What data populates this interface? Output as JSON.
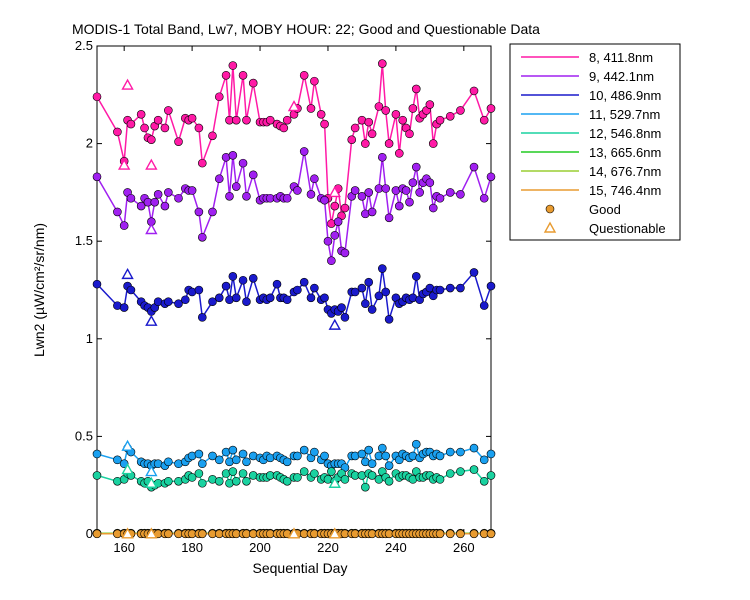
{
  "chart_data": {
    "type": "line",
    "title": "MODIS-1 Total Band, Lw7, MOBY HOUR: 22;  Good and Questionable Data",
    "xlabel": "Sequential Day",
    "ylabel": "Lwn2 (µW/cm²/sr/nm)",
    "xlim": [
      152,
      268
    ],
    "ylim": [
      0,
      2.5
    ],
    "xticks": [
      "160",
      "180",
      "200",
      "220",
      "240",
      "260"
    ],
    "yticks": [
      "0",
      "0.5",
      "1",
      "1.5",
      "2",
      "2.5"
    ],
    "grid": false,
    "legend_position": "right-outside",
    "x": [
      152,
      158,
      160,
      161,
      162,
      165,
      166,
      167,
      168,
      169,
      170,
      172,
      173,
      176,
      178,
      179,
      180,
      182,
      183,
      186,
      188,
      190,
      191,
      192,
      193,
      195,
      196,
      198,
      200,
      201,
      202,
      203,
      205,
      206,
      207,
      208,
      210,
      211,
      213,
      215,
      216,
      218,
      219,
      220,
      221,
      222,
      223,
      224,
      225,
      227,
      228,
      230,
      231,
      232,
      233,
      235,
      236,
      237,
      238,
      240,
      241,
      242,
      243,
      244,
      245,
      246,
      247,
      248,
      249,
      250,
      251,
      252,
      253,
      256,
      259,
      263,
      266,
      268
    ],
    "series": [
      {
        "name": "8, 411.8nm",
        "color": "#ff1aa6",
        "values": [
          2.24,
          2.06,
          1.91,
          2.12,
          2.1,
          2.15,
          2.08,
          2.03,
          2.02,
          2.09,
          2.12,
          2.08,
          2.17,
          2.01,
          2.13,
          2.12,
          2.13,
          2.08,
          1.9,
          2.04,
          2.24,
          2.35,
          2.12,
          2.4,
          2.12,
          2.35,
          2.12,
          2.31,
          2.11,
          2.11,
          2.11,
          2.12,
          2.1,
          2.09,
          2.08,
          2.12,
          2.15,
          2.18,
          2.35,
          2.18,
          2.32,
          2.15,
          2.1,
          1.72,
          1.59,
          1.68,
          1.77,
          1.63,
          1.67,
          2.02,
          2.08,
          2.12,
          2.0,
          2.11,
          2.05,
          2.19,
          2.41,
          2.17,
          2.0,
          2.15,
          1.95,
          2.12,
          2.08,
          2.05,
          2.18,
          2.28,
          2.13,
          2.15,
          2.17,
          2.2,
          2.0,
          2.1,
          2.12,
          2.14,
          2.17,
          2.27,
          2.12,
          2.18
        ]
      },
      {
        "name": "9, 442.1nm",
        "color": "#a020f0",
        "values": [
          1.83,
          1.65,
          1.58,
          1.75,
          1.72,
          1.68,
          1.72,
          1.7,
          1.6,
          1.7,
          1.74,
          1.68,
          1.75,
          1.72,
          1.77,
          1.76,
          1.76,
          1.65,
          1.52,
          1.65,
          1.82,
          1.93,
          1.73,
          1.94,
          1.78,
          1.9,
          1.73,
          1.84,
          1.71,
          1.72,
          1.72,
          1.72,
          1.72,
          1.73,
          1.72,
          1.72,
          1.78,
          1.76,
          1.96,
          1.74,
          1.82,
          1.72,
          1.71,
          1.5,
          1.4,
          1.53,
          1.6,
          1.45,
          1.44,
          1.73,
          1.76,
          1.73,
          1.64,
          1.75,
          1.65,
          1.77,
          1.93,
          1.77,
          1.62,
          1.76,
          1.68,
          1.77,
          1.76,
          1.7,
          1.8,
          1.88,
          1.75,
          1.8,
          1.82,
          1.8,
          1.67,
          1.73,
          1.72,
          1.75,
          1.74,
          1.88,
          1.72,
          1.83
        ]
      },
      {
        "name": "10, 486.9nm",
        "color": "#1a1acc",
        "values": [
          1.28,
          1.17,
          1.16,
          1.27,
          1.25,
          1.19,
          1.17,
          1.16,
          1.14,
          1.16,
          1.19,
          1.18,
          1.19,
          1.18,
          1.2,
          1.25,
          1.24,
          1.25,
          1.11,
          1.19,
          1.21,
          1.27,
          1.2,
          1.32,
          1.21,
          1.3,
          1.19,
          1.31,
          1.2,
          1.21,
          1.2,
          1.21,
          1.28,
          1.21,
          1.21,
          1.2,
          1.24,
          1.25,
          1.29,
          1.21,
          1.26,
          1.2,
          1.21,
          1.15,
          1.13,
          1.15,
          1.14,
          1.16,
          1.11,
          1.24,
          1.24,
          1.26,
          1.18,
          1.29,
          1.15,
          1.22,
          1.36,
          1.24,
          1.1,
          1.21,
          1.18,
          1.19,
          1.21,
          1.2,
          1.21,
          1.32,
          1.2,
          1.23,
          1.24,
          1.26,
          1.22,
          1.25,
          1.25,
          1.26,
          1.26,
          1.34,
          1.17,
          1.27
        ]
      },
      {
        "name": "11, 529.7nm",
        "color": "#1aa0f0",
        "values": [
          0.41,
          0.38,
          0.36,
          0.44,
          0.42,
          0.37,
          0.36,
          0.36,
          0.35,
          0.36,
          0.36,
          0.35,
          0.37,
          0.36,
          0.37,
          0.39,
          0.4,
          0.41,
          0.36,
          0.4,
          0.38,
          0.42,
          0.37,
          0.43,
          0.38,
          0.41,
          0.37,
          0.4,
          0.39,
          0.38,
          0.4,
          0.39,
          0.4,
          0.39,
          0.38,
          0.37,
          0.4,
          0.4,
          0.43,
          0.39,
          0.42,
          0.38,
          0.4,
          0.36,
          0.35,
          0.36,
          0.36,
          0.36,
          0.34,
          0.4,
          0.4,
          0.41,
          0.37,
          0.43,
          0.36,
          0.4,
          0.44,
          0.4,
          0.35,
          0.4,
          0.38,
          0.41,
          0.4,
          0.39,
          0.4,
          0.46,
          0.39,
          0.41,
          0.42,
          0.42,
          0.4,
          0.41,
          0.4,
          0.42,
          0.42,
          0.44,
          0.38,
          0.41
        ]
      },
      {
        "name": "12, 546.8nm",
        "color": "#1ad2a0",
        "values": [
          0.3,
          0.27,
          0.28,
          0.31,
          0.3,
          0.27,
          0.26,
          0.27,
          0.24,
          0.25,
          0.26,
          0.26,
          0.27,
          0.27,
          0.28,
          0.3,
          0.29,
          0.31,
          0.26,
          0.28,
          0.27,
          0.31,
          0.26,
          0.32,
          0.27,
          0.31,
          0.27,
          0.3,
          0.29,
          0.29,
          0.29,
          0.3,
          0.3,
          0.29,
          0.28,
          0.27,
          0.29,
          0.29,
          0.32,
          0.29,
          0.31,
          0.28,
          0.29,
          0.28,
          0.32,
          0.27,
          0.29,
          0.31,
          0.28,
          0.31,
          0.3,
          0.3,
          0.24,
          0.31,
          0.3,
          0.28,
          0.32,
          0.29,
          0.27,
          0.31,
          0.29,
          0.3,
          0.3,
          0.29,
          0.28,
          0.32,
          0.29,
          0.29,
          0.3,
          0.3,
          0.28,
          0.29,
          0.28,
          0.31,
          0.32,
          0.33,
          0.27,
          0.3
        ]
      },
      {
        "name": "13, 665.6nm",
        "color": "#22cc22",
        "values": [
          0.004,
          0.004,
          0.004,
          0.004,
          0.004,
          0.004,
          0.004,
          0.004,
          0.004,
          0.004,
          0.004,
          0.004,
          0.004,
          0.004,
          0.004,
          0.004,
          0.004,
          0.004,
          0.004,
          0.004,
          0.004,
          0.004,
          0.004,
          0.004,
          0.004,
          0.004,
          0.004,
          0.004,
          0.004,
          0.004,
          0.004,
          0.004,
          0.004,
          0.004,
          0.004,
          0.004,
          0.004,
          0.004,
          0.004,
          0.004,
          0.004,
          0.004,
          0.004,
          0.004,
          0.004,
          0.004,
          0.004,
          0.004,
          0.004,
          0.004,
          0.004,
          0.004,
          0.004,
          0.004,
          0.004,
          0.004,
          0.004,
          0.004,
          0.004,
          0.004,
          0.004,
          0.004,
          0.004,
          0.004,
          0.004,
          0.004,
          0.004,
          0.004,
          0.004,
          0.004,
          0.004,
          0.004,
          0.004,
          0.004,
          0.004,
          0.004,
          0.004,
          0.004
        ]
      },
      {
        "name": "14, 676.7nm",
        "color": "#9acd32",
        "values": [
          0.003,
          0.003,
          0.003,
          0.003,
          0.003,
          0.003,
          0.003,
          0.003,
          0.003,
          0.003,
          0.003,
          0.003,
          0.003,
          0.003,
          0.003,
          0.003,
          0.003,
          0.003,
          0.003,
          0.003,
          0.003,
          0.003,
          0.003,
          0.003,
          0.003,
          0.003,
          0.003,
          0.003,
          0.003,
          0.003,
          0.003,
          0.003,
          0.003,
          0.003,
          0.003,
          0.003,
          0.003,
          0.003,
          0.003,
          0.003,
          0.003,
          0.003,
          0.003,
          0.003,
          0.003,
          0.003,
          0.003,
          0.003,
          0.003,
          0.003,
          0.003,
          0.003,
          0.003,
          0.003,
          0.003,
          0.003,
          0.003,
          0.003,
          0.003,
          0.003,
          0.003,
          0.003,
          0.003,
          0.003,
          0.003,
          0.003,
          0.003,
          0.003,
          0.003,
          0.003,
          0.003,
          0.003,
          0.003,
          0.003,
          0.003,
          0.003,
          0.003,
          0.003
        ]
      },
      {
        "name": "15, 746.4nm",
        "color": "#e89b30",
        "values": [
          0.001,
          0.001,
          0.001,
          0.001,
          0.001,
          0.001,
          0.001,
          0.001,
          0.001,
          0.001,
          0.001,
          0.001,
          0.001,
          0.001,
          0.001,
          0.001,
          0.001,
          0.001,
          0.001,
          0.001,
          0.001,
          0.001,
          0.001,
          0.001,
          0.001,
          0.001,
          0.001,
          0.001,
          0.001,
          0.001,
          0.001,
          0.001,
          0.001,
          0.001,
          0.001,
          0.001,
          0.001,
          0.001,
          0.001,
          0.001,
          0.001,
          0.001,
          0.001,
          0.001,
          0.001,
          0.001,
          0.001,
          0.001,
          0.001,
          0.001,
          0.001,
          0.001,
          0.001,
          0.001,
          0.001,
          0.001,
          0.001,
          0.001,
          0.001,
          0.001,
          0.001,
          0.001,
          0.001,
          0.001,
          0.001,
          0.001,
          0.001,
          0.001,
          0.001,
          0.001,
          0.001,
          0.001,
          0.001,
          0.001,
          0.001,
          0.001,
          0.001,
          0.001
        ]
      }
    ],
    "questionable": [
      {
        "series": "8, 411.8nm",
        "x": [
          160,
          161,
          168,
          210,
          222
        ],
        "values": [
          1.89,
          2.3,
          1.89,
          2.19,
          1.75
        ]
      },
      {
        "series": "9, 442.1nm",
        "x": [
          168
        ],
        "values": [
          1.56
        ]
      },
      {
        "series": "10, 486.9nm",
        "x": [
          161,
          168,
          222
        ],
        "values": [
          1.33,
          1.09,
          1.07
        ]
      },
      {
        "series": "11, 529.7nm",
        "x": [
          161,
          168
        ],
        "values": [
          0.45,
          0.32
        ]
      },
      {
        "series": "12, 546.8nm",
        "x": [
          161,
          168,
          222
        ],
        "values": [
          0.33,
          0.26,
          0.26
        ]
      },
      {
        "series": "15, 746.4nm",
        "x": [
          161,
          168,
          210,
          222
        ],
        "values": [
          0.001,
          0.001,
          0.001,
          0.001
        ]
      }
    ],
    "markers": {
      "good": {
        "label": "Good",
        "color": "#e89b30",
        "shape": "circle"
      },
      "questionable": {
        "label": "Questionable",
        "color": "#e89b30",
        "shape": "triangle"
      }
    }
  }
}
